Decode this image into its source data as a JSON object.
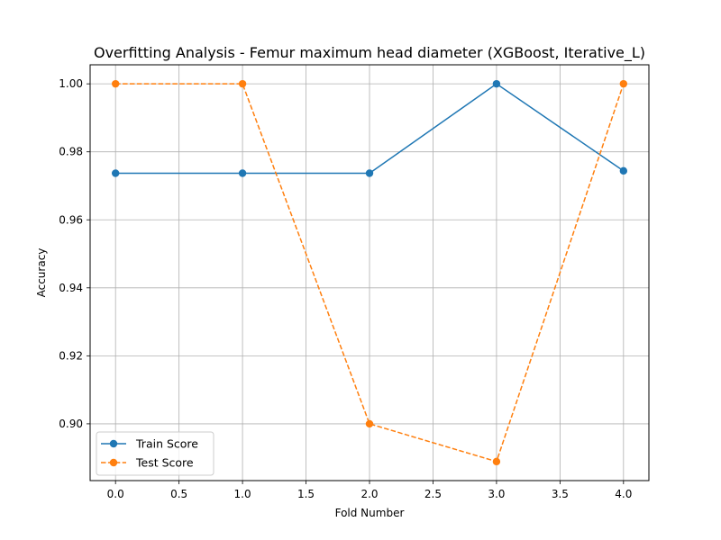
{
  "chart_data": {
    "type": "line",
    "title": "Overfitting Analysis - Femur maximum head diameter (XGBoost, Iterative_L)",
    "xlabel": "Fold Number",
    "ylabel": "Accuracy",
    "x": [
      0,
      1,
      2,
      3,
      4
    ],
    "xlim": [
      -0.2,
      4.2
    ],
    "ylim": [
      0.8833,
      1.0056
    ],
    "xticks": [
      0.0,
      0.5,
      1.0,
      1.5,
      2.0,
      2.5,
      3.0,
      3.5,
      4.0
    ],
    "xtick_labels": [
      "0.0",
      "0.5",
      "1.0",
      "1.5",
      "2.0",
      "2.5",
      "3.0",
      "3.5",
      "4.0"
    ],
    "yticks": [
      0.9,
      0.92,
      0.94,
      0.96,
      0.98,
      1.0
    ],
    "ytick_labels": [
      "0.90",
      "0.92",
      "0.94",
      "0.96",
      "0.98",
      "1.00"
    ],
    "grid": true,
    "legend_position": "lower-left",
    "series": [
      {
        "name": "Train Score",
        "values": [
          0.9737,
          0.9737,
          0.9737,
          1.0,
          0.9744
        ],
        "color": "#1f77b4",
        "linestyle": "solid",
        "marker": "circle"
      },
      {
        "name": "Test Score",
        "values": [
          1.0,
          1.0,
          0.9,
          0.8889,
          1.0
        ],
        "color": "#ff7f0e",
        "linestyle": "dashed",
        "marker": "circle"
      }
    ]
  }
}
